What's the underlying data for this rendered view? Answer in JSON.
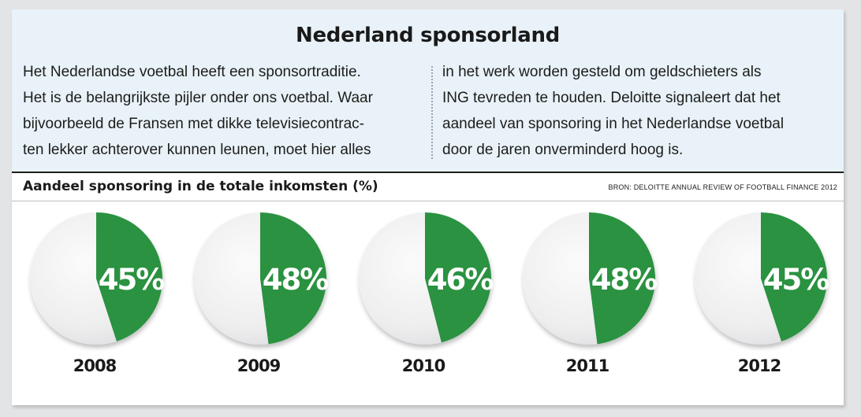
{
  "article": {
    "title": "Nederland sponsorland",
    "intro_left": [
      "Het Nederlandse voetbal heeft een sponsortraditie.",
      "Het is de belangrijkste pijler onder ons voetbal. Waar",
      "bijvoorbeeld de Fransen met dikke televisiecontrac-",
      "ten lekker achterover kunnen leunen, moet hier alles"
    ],
    "intro_right": [
      "in het werk worden gesteld om geldschieters als",
      "ING tevreden te houden. Deloitte signaleert dat het",
      "aandeel van sponsoring in het Nederlandse voetbal",
      "door de jaren onverminderd hoog is."
    ]
  },
  "colors": {
    "panel": "#e8f2f8",
    "slice": "#2a9240",
    "pie_base": "#f1f1f2"
  },
  "chart_data": {
    "type": "pie",
    "title": "Aandeel sponsoring in de totale inkomsten (%)",
    "source": "BRON: DELOITTE ANNUAL REVIEW OF FOOTBALL FINANCE 2012",
    "unit": "%",
    "categories": [
      "2008",
      "2009",
      "2010",
      "2011",
      "2012"
    ],
    "values": [
      45,
      48,
      46,
      48,
      45
    ],
    "labels": [
      "45%",
      "48%",
      "46%",
      "48%",
      "45%"
    ]
  }
}
